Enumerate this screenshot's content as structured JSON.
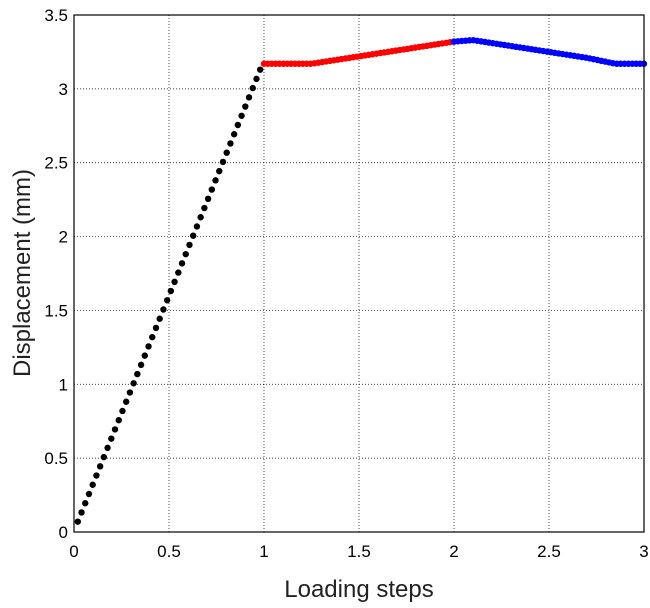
{
  "chart_data": {
    "type": "scatter",
    "title": "",
    "xlabel": "Loading steps",
    "ylabel": "Displacement (mm)",
    "xlim": [
      0,
      3
    ],
    "ylim": [
      0,
      3.5
    ],
    "xticks": [
      "0",
      "0.5",
      "1",
      "1.5",
      "2",
      "2.5",
      "3"
    ],
    "yticks": [
      "0",
      "0.5",
      "1",
      "1.5",
      "2",
      "2.5",
      "3",
      "3.5"
    ],
    "grid": true,
    "legend": "none",
    "series": [
      {
        "color": "#000000",
        "segment": [
          [
            0.02,
            0.07
          ],
          [
            0.98,
            3.13
          ]
        ],
        "n_points": 50
      },
      {
        "color": "#ff0000",
        "x": [
          1.0,
          1.1,
          1.25,
          1.4,
          1.55,
          1.7,
          1.85,
          2.0
        ],
        "y": [
          3.17,
          3.17,
          3.17,
          3.2,
          3.23,
          3.26,
          3.29,
          3.32
        ],
        "n_points": 50
      },
      {
        "color": "#0000ff",
        "x": [
          2.0,
          2.1,
          2.3,
          2.5,
          2.7,
          2.85,
          2.95,
          3.0
        ],
        "y": [
          3.32,
          3.33,
          3.29,
          3.25,
          3.21,
          3.17,
          3.17,
          3.17
        ],
        "n_points": 50
      }
    ]
  }
}
